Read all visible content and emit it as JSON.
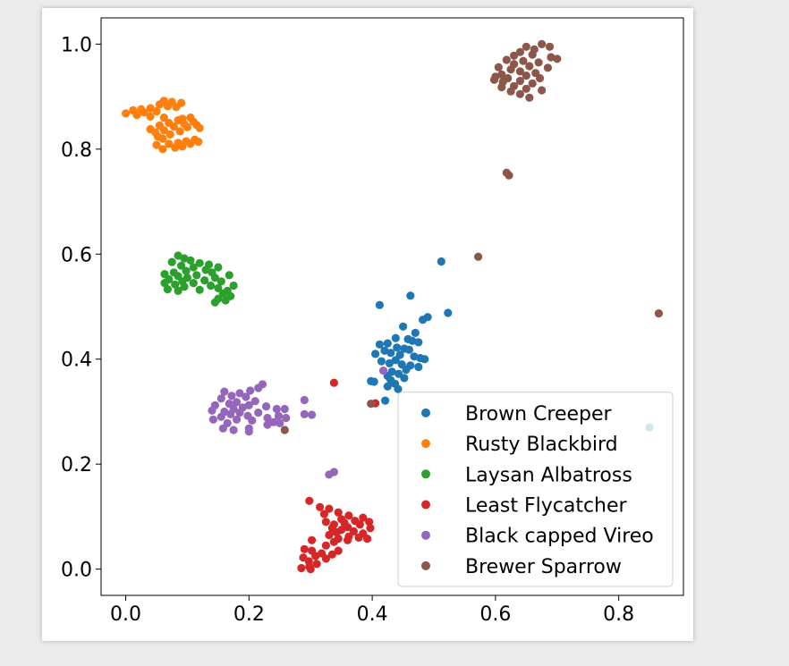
{
  "chart_data": {
    "type": "scatter",
    "title": "",
    "xlabel": "",
    "ylabel": "",
    "xlim": [
      -0.04,
      0.905
    ],
    "ylim": [
      -0.05,
      1.05
    ],
    "x_ticks": [
      "0.0",
      "0.2",
      "0.4",
      "0.6",
      "0.8"
    ],
    "y_ticks": [
      "0.0",
      "0.2",
      "0.4",
      "0.6",
      "0.8",
      "1.0"
    ],
    "grid": false,
    "legend_position": "bottom-right",
    "series": [
      {
        "name": "Brown Creeper",
        "color": "#1f77b4",
        "points": [
          [
            0.512,
            0.586
          ],
          [
            0.462,
            0.521
          ],
          [
            0.412,
            0.503
          ],
          [
            0.523,
            0.488
          ],
          [
            0.49,
            0.48
          ],
          [
            0.482,
            0.475
          ],
          [
            0.45,
            0.462
          ],
          [
            0.47,
            0.45
          ],
          [
            0.438,
            0.44
          ],
          [
            0.458,
            0.438
          ],
          [
            0.465,
            0.435
          ],
          [
            0.475,
            0.432
          ],
          [
            0.425,
            0.43
          ],
          [
            0.412,
            0.428
          ],
          [
            0.44,
            0.422
          ],
          [
            0.452,
            0.42
          ],
          [
            0.46,
            0.418
          ],
          [
            0.42,
            0.416
          ],
          [
            0.43,
            0.412
          ],
          [
            0.405,
            0.41
          ],
          [
            0.445,
            0.408
          ],
          [
            0.468,
            0.405
          ],
          [
            0.478,
            0.402
          ],
          [
            0.485,
            0.4
          ],
          [
            0.438,
            0.398
          ],
          [
            0.415,
            0.396
          ],
          [
            0.428,
            0.392
          ],
          [
            0.448,
            0.39
          ],
          [
            0.462,
            0.388
          ],
          [
            0.475,
            0.385
          ],
          [
            0.455,
            0.38
          ],
          [
            0.432,
            0.376
          ],
          [
            0.443,
            0.372
          ],
          [
            0.425,
            0.368
          ],
          [
            0.452,
            0.364
          ],
          [
            0.43,
            0.36
          ],
          [
            0.398,
            0.358
          ],
          [
            0.403,
            0.357
          ],
          [
            0.437,
            0.353
          ],
          [
            0.425,
            0.348
          ],
          [
            0.442,
            0.343
          ],
          [
            0.421,
            0.321
          ],
          [
            0.85,
            0.27
          ]
        ]
      },
      {
        "name": "Rusty Blackbird",
        "color": "#ff7f0e",
        "points": [
          [
            0.062,
            0.892
          ],
          [
            0.075,
            0.89
          ],
          [
            0.09,
            0.888
          ],
          [
            0.055,
            0.885
          ],
          [
            0.068,
            0.882
          ],
          [
            0.082,
            0.88
          ],
          [
            0.04,
            0.878
          ],
          [
            0.025,
            0.876
          ],
          [
            0.012,
            0.874
          ],
          [
            0.05,
            0.872
          ],
          [
            0.03,
            0.87
          ],
          [
            0.0,
            0.868
          ],
          [
            0.018,
            0.865
          ],
          [
            0.04,
            0.862
          ],
          [
            0.062,
            0.86
          ],
          [
            0.092,
            0.858
          ],
          [
            0.105,
            0.86
          ],
          [
            0.085,
            0.855
          ],
          [
            0.11,
            0.852
          ],
          [
            0.07,
            0.85
          ],
          [
            0.095,
            0.848
          ],
          [
            0.115,
            0.846
          ],
          [
            0.055,
            0.845
          ],
          [
            0.078,
            0.843
          ],
          [
            0.1,
            0.842
          ],
          [
            0.12,
            0.84
          ],
          [
            0.04,
            0.838
          ],
          [
            0.062,
            0.836
          ],
          [
            0.088,
            0.834
          ],
          [
            0.048,
            0.832
          ],
          [
            0.072,
            0.828
          ],
          [
            0.052,
            0.824
          ],
          [
            0.06,
            0.82
          ],
          [
            0.112,
            0.818
          ],
          [
            0.098,
            0.815
          ],
          [
            0.118,
            0.814
          ],
          [
            0.085,
            0.812
          ],
          [
            0.07,
            0.81
          ],
          [
            0.105,
            0.81
          ],
          [
            0.05,
            0.808
          ],
          [
            0.092,
            0.805
          ],
          [
            0.08,
            0.803
          ],
          [
            0.06,
            0.8
          ]
        ]
      },
      {
        "name": "Laysan Albatross",
        "color": "#2ca02c",
        "points": [
          [
            0.085,
            0.597
          ],
          [
            0.095,
            0.592
          ],
          [
            0.105,
            0.588
          ],
          [
            0.075,
            0.585
          ],
          [
            0.12,
            0.583
          ],
          [
            0.135,
            0.58
          ],
          [
            0.09,
            0.578
          ],
          [
            0.11,
            0.575
          ],
          [
            0.15,
            0.575
          ],
          [
            0.13,
            0.57
          ],
          [
            0.098,
            0.568
          ],
          [
            0.078,
            0.565
          ],
          [
            0.14,
            0.565
          ],
          [
            0.063,
            0.562
          ],
          [
            0.115,
            0.56
          ],
          [
            0.168,
            0.56
          ],
          [
            0.085,
            0.558
          ],
          [
            0.1,
            0.555
          ],
          [
            0.145,
            0.555
          ],
          [
            0.07,
            0.552
          ],
          [
            0.128,
            0.55
          ],
          [
            0.092,
            0.548
          ],
          [
            0.155,
            0.548
          ],
          [
            0.063,
            0.545
          ],
          [
            0.11,
            0.545
          ],
          [
            0.08,
            0.542
          ],
          [
            0.138,
            0.54
          ],
          [
            0.175,
            0.54
          ],
          [
            0.095,
            0.538
          ],
          [
            0.15,
            0.535
          ],
          [
            0.068,
            0.533
          ],
          [
            0.12,
            0.532
          ],
          [
            0.165,
            0.53
          ],
          [
            0.085,
            0.53
          ],
          [
            0.158,
            0.525
          ],
          [
            0.17,
            0.52
          ],
          [
            0.15,
            0.515
          ],
          [
            0.162,
            0.512
          ],
          [
            0.145,
            0.508
          ]
        ]
      },
      {
        "name": "Least Flycatcher",
        "color": "#d62728",
        "points": [
          [
            0.338,
            0.355
          ],
          [
            0.405,
            0.316
          ],
          [
            0.298,
            0.13
          ],
          [
            0.315,
            0.118
          ],
          [
            0.33,
            0.115
          ],
          [
            0.345,
            0.108
          ],
          [
            0.322,
            0.105
          ],
          [
            0.362,
            0.102
          ],
          [
            0.385,
            0.098
          ],
          [
            0.35,
            0.095
          ],
          [
            0.372,
            0.092
          ],
          [
            0.395,
            0.09
          ],
          [
            0.325,
            0.09
          ],
          [
            0.355,
            0.088
          ],
          [
            0.338,
            0.085
          ],
          [
            0.38,
            0.085
          ],
          [
            0.36,
            0.08
          ],
          [
            0.397,
            0.078
          ],
          [
            0.335,
            0.078
          ],
          [
            0.35,
            0.075
          ],
          [
            0.37,
            0.072
          ],
          [
            0.342,
            0.07
          ],
          [
            0.385,
            0.068
          ],
          [
            0.33,
            0.065
          ],
          [
            0.362,
            0.062
          ],
          [
            0.378,
            0.06
          ],
          [
            0.392,
            0.058
          ],
          [
            0.345,
            0.058
          ],
          [
            0.36,
            0.055
          ],
          [
            0.302,
            0.055
          ],
          [
            0.338,
            0.052
          ],
          [
            0.325,
            0.045
          ],
          [
            0.29,
            0.038
          ],
          [
            0.345,
            0.035
          ],
          [
            0.302,
            0.035
          ],
          [
            0.318,
            0.03
          ],
          [
            0.335,
            0.028
          ],
          [
            0.308,
            0.025
          ],
          [
            0.288,
            0.022
          ],
          [
            0.325,
            0.02
          ],
          [
            0.297,
            0.015
          ],
          [
            0.31,
            0.01
          ],
          [
            0.298,
            0.005
          ],
          [
            0.285,
            0.002
          ],
          [
            0.3,
            0.0
          ]
        ]
      },
      {
        "name": "Black capped Vireo",
        "color": "#9467bd",
        "points": [
          [
            0.418,
            0.378
          ],
          [
            0.222,
            0.352
          ],
          [
            0.215,
            0.345
          ],
          [
            0.202,
            0.34
          ],
          [
            0.16,
            0.338
          ],
          [
            0.185,
            0.335
          ],
          [
            0.172,
            0.33
          ],
          [
            0.195,
            0.328
          ],
          [
            0.155,
            0.325
          ],
          [
            0.29,
            0.322
          ],
          [
            0.21,
            0.32
          ],
          [
            0.18,
            0.318
          ],
          [
            0.168,
            0.315
          ],
          [
            0.145,
            0.312
          ],
          [
            0.2,
            0.312
          ],
          [
            0.228,
            0.31
          ],
          [
            0.19,
            0.308
          ],
          [
            0.175,
            0.305
          ],
          [
            0.245,
            0.305
          ],
          [
            0.258,
            0.305
          ],
          [
            0.14,
            0.302
          ],
          [
            0.16,
            0.3
          ],
          [
            0.185,
            0.298
          ],
          [
            0.215,
            0.298
          ],
          [
            0.29,
            0.295
          ],
          [
            0.302,
            0.294
          ],
          [
            0.17,
            0.295
          ],
          [
            0.198,
            0.292
          ],
          [
            0.248,
            0.292
          ],
          [
            0.155,
            0.29
          ],
          [
            0.23,
            0.288
          ],
          [
            0.26,
            0.288
          ],
          [
            0.142,
            0.285
          ],
          [
            0.18,
            0.285
          ],
          [
            0.205,
            0.283
          ],
          [
            0.24,
            0.28
          ],
          [
            0.165,
            0.278
          ],
          [
            0.23,
            0.275
          ],
          [
            0.25,
            0.278
          ],
          [
            0.158,
            0.268
          ],
          [
            0.175,
            0.265
          ],
          [
            0.2,
            0.262
          ],
          [
            0.2,
            0.268
          ],
          [
            0.338,
            0.185
          ],
          [
            0.33,
            0.18
          ]
        ]
      },
      {
        "name": "Brewer Sparrow",
        "color": "#8c564b",
        "points": [
          [
            0.675,
            1.0
          ],
          [
            0.65,
            0.995
          ],
          [
            0.688,
            0.995
          ],
          [
            0.663,
            0.99
          ],
          [
            0.64,
            0.985
          ],
          [
            0.66,
            0.98
          ],
          [
            0.63,
            0.978
          ],
          [
            0.69,
            0.975
          ],
          [
            0.7,
            0.972
          ],
          [
            0.618,
            0.97
          ],
          [
            0.645,
            0.968
          ],
          [
            0.67,
            0.965
          ],
          [
            0.63,
            0.962
          ],
          [
            0.655,
            0.958
          ],
          [
            0.605,
            0.956
          ],
          [
            0.685,
            0.955
          ],
          [
            0.625,
            0.952
          ],
          [
            0.64,
            0.948
          ],
          [
            0.665,
            0.945
          ],
          [
            0.61,
            0.942
          ],
          [
            0.65,
            0.94
          ],
          [
            0.6,
            0.938
          ],
          [
            0.672,
            0.935
          ],
          [
            0.62,
            0.935
          ],
          [
            0.598,
            0.932
          ],
          [
            0.64,
            0.93
          ],
          [
            0.612,
            0.928
          ],
          [
            0.66,
            0.925
          ],
          [
            0.63,
            0.92
          ],
          [
            0.61,
            0.918
          ],
          [
            0.65,
            0.915
          ],
          [
            0.675,
            0.912
          ],
          [
            0.625,
            0.91
          ],
          [
            0.64,
            0.905
          ],
          [
            0.655,
            0.898
          ],
          [
            0.618,
            0.755
          ],
          [
            0.622,
            0.75
          ],
          [
            0.572,
            0.595
          ],
          [
            0.865,
            0.487
          ],
          [
            0.398,
            0.315
          ],
          [
            0.258,
            0.265
          ]
        ]
      }
    ]
  }
}
